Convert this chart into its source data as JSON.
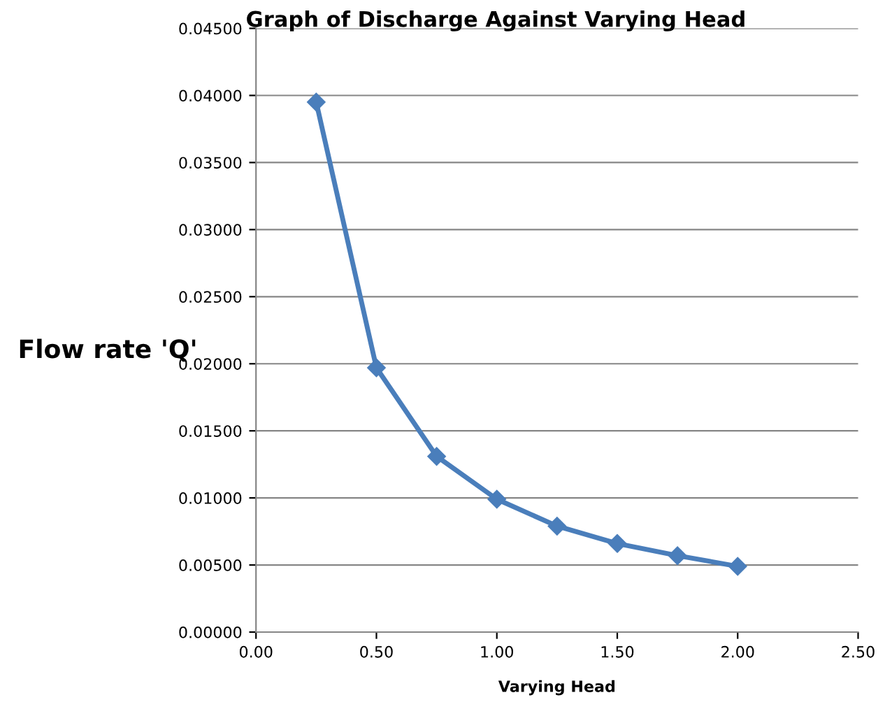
{
  "chart_data": {
    "type": "line",
    "title": "Graph of Discharge Against Varying Head",
    "xlabel": "Varying Head",
    "ylabel": "Flow rate 'Q'",
    "x": [
      0.25,
      0.5,
      0.75,
      1.0,
      1.25,
      1.5,
      1.75,
      2.0
    ],
    "series": [
      {
        "color": "#4a7ebb",
        "values": [
          0.0395,
          0.0197,
          0.0131,
          0.0099,
          0.0079,
          0.0066,
          0.0057,
          0.0049
        ]
      }
    ],
    "xlim": [
      0,
      2.5
    ],
    "xticks": [
      {
        "value": 0,
        "label": "0.00"
      },
      {
        "value": 0.5,
        "label": "0.50"
      },
      {
        "value": 1.0,
        "label": "1.00"
      },
      {
        "value": 1.5,
        "label": "1.50"
      },
      {
        "value": 2.0,
        "label": "2.00"
      },
      {
        "value": 2.5,
        "label": "2.50"
      }
    ],
    "ylim": [
      0,
      0.045
    ],
    "yticks": [
      {
        "value": 0,
        "label": "0.00000"
      },
      {
        "value": 0.005,
        "label": "0.00500"
      },
      {
        "value": 0.01,
        "label": "0.01000"
      },
      {
        "value": 0.015,
        "label": "0.01500"
      },
      {
        "value": 0.02,
        "label": "0.02000"
      },
      {
        "value": 0.025,
        "label": "0.02500"
      },
      {
        "value": 0.03,
        "label": "0.03000"
      },
      {
        "value": 0.035,
        "label": "0.03500"
      },
      {
        "value": 0.04,
        "label": "0.04000"
      },
      {
        "value": 0.045,
        "label": "0.04500"
      }
    ],
    "grid": "y",
    "marker": "diamond",
    "line_style": "solid",
    "legend": false
  }
}
